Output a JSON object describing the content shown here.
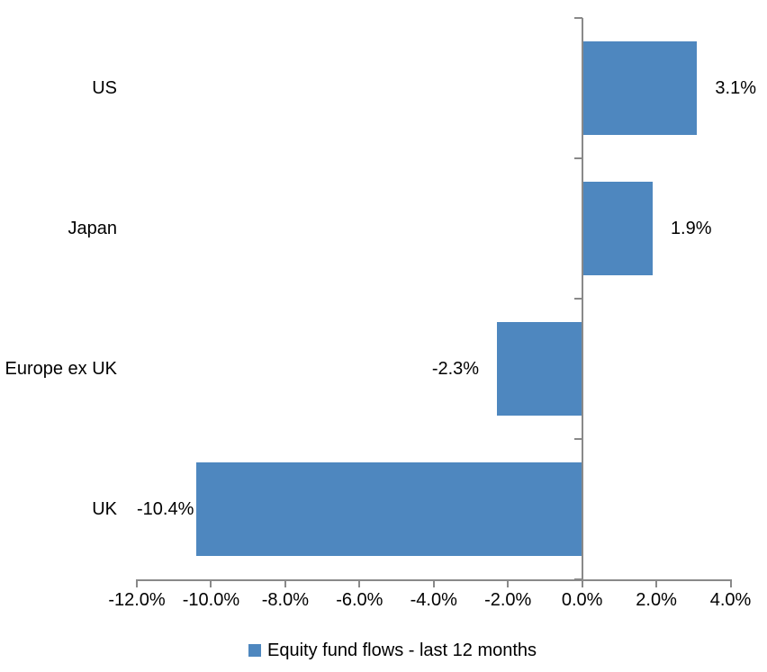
{
  "chart_data": {
    "type": "bar",
    "orientation": "horizontal",
    "title": "",
    "categories": [
      "US",
      "Japan",
      "Europe ex UK",
      "UK"
    ],
    "series": [
      {
        "name": "Equity fund flows - last 12 months",
        "values": [
          3.1,
          1.9,
          -2.3,
          -10.4
        ],
        "data_labels": [
          "3.1%",
          "1.9%",
          "-2.3%",
          "-10.4%"
        ]
      }
    ],
    "xlabel": "",
    "ylabel": "",
    "xlim": [
      -12,
      4
    ],
    "x_ticks": [
      -12,
      -10,
      -8,
      -6,
      -4,
      -2,
      0,
      2,
      4
    ],
    "x_tick_labels": [
      "-12.0%",
      "-10.0%",
      "-8.0%",
      "-6.0%",
      "-4.0%",
      "-2.0%",
      "0.0%",
      "2.0%",
      "4.0%"
    ],
    "grid": false,
    "legend": "Equity fund flows - last 12 months",
    "legend_position": "bottom-center",
    "colors": {
      "bar": "#4E87BF",
      "axis": "#898989",
      "text": "#000000",
      "background": "#FFFFFF"
    }
  }
}
